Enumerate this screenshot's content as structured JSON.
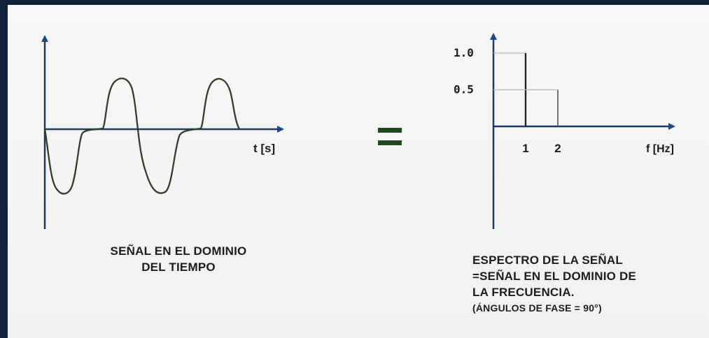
{
  "time_domain": {
    "axis_label": "t [s]",
    "caption_line1": "SEÑAL EN EL DOMINIO",
    "caption_line2": "DEL TIEMPO"
  },
  "equals_sign": "=",
  "frequency_domain": {
    "axis_label": "f [Hz]",
    "y_ticks": [
      "1.0",
      "0.5"
    ],
    "x_ticks": [
      "1",
      "2"
    ],
    "caption_lines": [
      "ESPECTRO DE LA SEÑAL",
      "=SEÑAL EN EL DOMINIO DE",
      "LA FRECUENCIA.",
      "(ÁNGULOS DE FASE = 90°)"
    ]
  },
  "chart_data": {
    "type": "bar",
    "categories": [
      "1",
      "2"
    ],
    "values": [
      1.0,
      0.5
    ],
    "xlabel": "f [Hz]",
    "ylabel": "",
    "ylim": [
      0,
      1.0
    ]
  },
  "colors": {
    "frame": "#0f2339",
    "waveform": "#2f4029",
    "axes": "#1b4a85",
    "equals": "#1f4a1a"
  }
}
